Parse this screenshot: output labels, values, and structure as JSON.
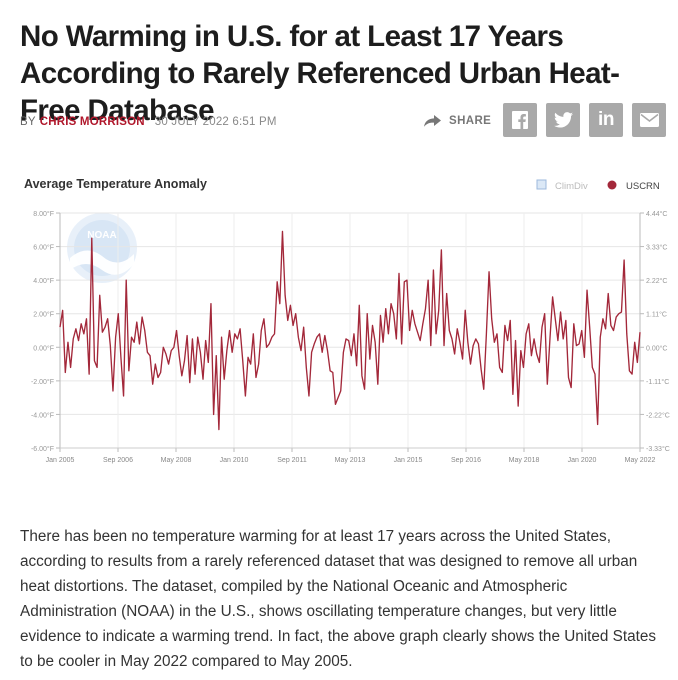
{
  "article": {
    "headline": "No Warming in U.S. for at Least 17 Years According to Rarely Referenced Urban Heat-Free Database",
    "by_label": "BY",
    "author": "CHRIS MORRISON",
    "date": "30 JULY 2022 6:51 PM",
    "share_label": "SHARE",
    "body": "There has been no temperature warming for at least 17 years across the United States, according to results from a rarely referenced dataset that was designed to remove all urban heat distortions. The dataset, compiled by the National Oceanic and Atmospheric Administration (NOAA) in the U.S., shows oscillating temperature changes, but very little evidence to indicate a warming trend. In fact, the above graph clearly shows the United States to be cooler in May 2022 compared to May 2005."
  },
  "social": [
    {
      "name": "facebook",
      "glyph": "f"
    },
    {
      "name": "twitter",
      "glyph": "t"
    },
    {
      "name": "linkedin",
      "glyph": "in"
    },
    {
      "name": "email",
      "glyph": "✉"
    }
  ],
  "colors": {
    "accent": "#b0172b",
    "line": "#a3283a",
    "social_bg": "#a9a9a9"
  },
  "chart_data": {
    "type": "line",
    "title": "Average Temperature Anomaly",
    "legend": [
      {
        "name": "ClimDiv",
        "color": "#aec7e8",
        "shape": "square"
      },
      {
        "name": "USCRN",
        "color": "#a3283a",
        "shape": "circle"
      }
    ],
    "legend_position": "top-right",
    "watermark": "NOAA",
    "x_tick_labels": [
      "Jan 2005",
      "Sep 2006",
      "May 2008",
      "Jan 2010",
      "Sep 2011",
      "May 2013",
      "Jan 2015",
      "Sep 2016",
      "May 2018",
      "Jan 2020",
      "May 2022"
    ],
    "y_left_labels": [
      "8.00°F",
      "6.00°F",
      "4.00°F",
      "2.00°F",
      "0.00°F",
      "-2.00°F",
      "-4.00°F",
      "-6.00°F"
    ],
    "y_right_labels": [
      "4.44°C",
      "3.33°C",
      "2.22°C",
      "1.11°C",
      "0.00°C",
      "-1.11°C",
      "-2.22°C",
      "-3.33°C"
    ],
    "ylim_f": [
      -6,
      8
    ],
    "xlim": [
      "2005-01",
      "2022-05"
    ],
    "grid": true,
    "series_name": "USCRN",
    "values_f": [
      1.2,
      2.2,
      -1.5,
      0.3,
      -1.2,
      0.5,
      1.1,
      0.4,
      1.4,
      0.8,
      1.7,
      -1.6,
      6.5,
      -0.8,
      -1.2,
      3.1,
      0.9,
      1.2,
      1.7,
      0.1,
      -2.6,
      0.6,
      2.0,
      -0.6,
      -2.9,
      4.0,
      -1.4,
      0.6,
      0.3,
      1.5,
      0.2,
      1.8,
      1.0,
      -0.3,
      -0.5,
      -2.2,
      -1.0,
      -1.8,
      -1.5,
      0.0,
      -0.4,
      -1.0,
      -0.2,
      0.0,
      1.0,
      -0.5,
      -1.7,
      -0.8,
      0.7,
      -2.1,
      0.5,
      -1.6,
      0.6,
      -0.3,
      -1.9,
      0.4,
      -0.9,
      2.6,
      -4.0,
      -0.5,
      -4.9,
      0.6,
      -1.9,
      -0.2,
      1.0,
      -0.3,
      0.8,
      0.5,
      1.1,
      -0.8,
      -2.9,
      -0.6,
      -1.0,
      0.8,
      -1.8,
      -1.0,
      1.0,
      1.7,
      0.0,
      0.2,
      0.6,
      0.8,
      3.9,
      2.6,
      6.9,
      3.1,
      1.6,
      2.5,
      1.3,
      2.0,
      0.6,
      -0.2,
      1.2,
      -1.2,
      -2.9,
      -0.3,
      0.2,
      0.6,
      0.8,
      -0.3,
      0.7,
      -0.2,
      -1.4,
      -1.5,
      -3.4,
      -3.0,
      -2.6,
      -0.3,
      0.5,
      0.4,
      -0.5,
      0.8,
      -1.1,
      2.5,
      -1.7,
      -2.5,
      2.0,
      -0.7,
      1.3,
      0.3,
      -2.2,
      1.9,
      0.3,
      2.3,
      0.8,
      2.6,
      2.0,
      0.5,
      4.4,
      0.2,
      3.9,
      4.0,
      1.0,
      2.2,
      1.4,
      0.9,
      0.4,
      1.4,
      2.3,
      4.0,
      0.1,
      4.6,
      0.8,
      2.2,
      5.8,
      0.1,
      3.2,
      1.0,
      0.5,
      -0.4,
      1.1,
      0.3,
      -0.7,
      2.2,
      0.3,
      -1.0,
      0.1,
      0.5,
      0.2,
      -1.3,
      -2.5,
      0.8,
      4.5,
      1.7,
      0.3,
      0.8,
      -1.2,
      -1.5,
      1.3,
      0.4,
      1.6,
      -2.8,
      0.4,
      -3.5,
      -0.2,
      -1.2,
      0.8,
      1.4,
      -0.5,
      0.5,
      -0.4,
      -0.9,
      1.2,
      2.0,
      -2.2,
      0.5,
      3.0,
      1.7,
      0.4,
      2.1,
      0.5,
      1.6,
      -1.8,
      -2.4,
      1.4,
      0.1,
      0.2,
      1.0,
      -0.6,
      3.4,
      1.2,
      -1.2,
      -1.6,
      -4.6,
      0.6,
      1.7,
      1.1,
      3.2,
      1.3,
      1.0,
      1.8,
      2.0,
      2.1,
      5.2,
      0.8,
      -1.4,
      -1.6,
      0.3,
      -0.9,
      0.9
    ]
  }
}
